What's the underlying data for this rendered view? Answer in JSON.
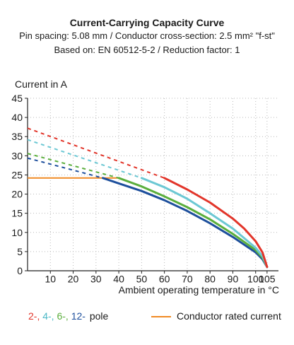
{
  "chart_data": {
    "type": "line",
    "title": "Current-Carrying Capacity Curve",
    "subtitle_lines": [
      "Pin spacing: 5.08 mm / Conductor cross-section: 2.5 mm² \"f-st\"",
      "Based on: EN 60512-5-2 / Reduction factor: 1"
    ],
    "xlabel": "Ambient operating temperature in °C",
    "ylabel": "Current in A",
    "xlim": [
      0,
      110
    ],
    "ylim": [
      0,
      45
    ],
    "x_ticks": [
      10,
      20,
      30,
      40,
      50,
      60,
      70,
      80,
      90,
      100,
      105
    ],
    "y_ticks": [
      0,
      5,
      10,
      15,
      20,
      25,
      30,
      35,
      40,
      45
    ],
    "grid": true,
    "series": [
      {
        "name": "2-",
        "color": "#e2352a",
        "dashed": [
          [
            0,
            37.2
          ],
          [
            60,
            24.2
          ]
        ],
        "solid": [
          [
            60,
            24.2
          ],
          [
            70,
            21.2
          ],
          [
            80,
            17.8
          ],
          [
            90,
            13.6
          ],
          [
            95,
            11.0
          ],
          [
            100,
            7.7
          ],
          [
            103,
            4.8
          ],
          [
            105,
            1.0
          ]
        ]
      },
      {
        "name": "4-",
        "color": "#6cc8d4",
        "dashed": [
          [
            0,
            34.2
          ],
          [
            50,
            24.2
          ]
        ],
        "solid": [
          [
            50,
            24.2
          ],
          [
            60,
            21.8
          ],
          [
            70,
            18.8
          ],
          [
            80,
            15.0
          ],
          [
            90,
            11.0
          ],
          [
            100,
            6.0
          ],
          [
            103,
            3.8
          ],
          [
            105,
            1.0
          ]
        ]
      },
      {
        "name": "6-",
        "color": "#5aae3c",
        "dashed": [
          [
            0,
            30.6
          ],
          [
            40,
            24.2
          ]
        ],
        "solid": [
          [
            40,
            24.2
          ],
          [
            50,
            22.0
          ],
          [
            60,
            19.4
          ],
          [
            70,
            16.6
          ],
          [
            80,
            13.4
          ],
          [
            90,
            9.6
          ],
          [
            100,
            5.4
          ],
          [
            103,
            3.4
          ],
          [
            105,
            1.0
          ]
        ]
      },
      {
        "name": "12-",
        "color": "#1d4f9c",
        "dashed": [
          [
            0,
            29.4
          ],
          [
            33,
            24.2
          ]
        ],
        "solid": [
          [
            33,
            24.2
          ],
          [
            40,
            22.8
          ],
          [
            50,
            20.8
          ],
          [
            60,
            18.4
          ],
          [
            70,
            15.6
          ],
          [
            80,
            12.4
          ],
          [
            90,
            8.8
          ],
          [
            100,
            4.8
          ],
          [
            103,
            3.0
          ],
          [
            105,
            1.0
          ]
        ]
      }
    ],
    "rated_current": {
      "name": "Conductor rated current",
      "color": "#f08a24",
      "points": [
        [
          0,
          24.2
        ],
        [
          40,
          24.2
        ]
      ]
    },
    "legend": {
      "pole_labels": [
        "2-,",
        "4-,",
        "6-,",
        "12-"
      ],
      "pole_colors": [
        "#e2352a",
        "#6cc8d4",
        "#5aae3c",
        "#1d4f9c"
      ],
      "pole_suffix": "pole",
      "rated_label": "Conductor rated current"
    }
  }
}
